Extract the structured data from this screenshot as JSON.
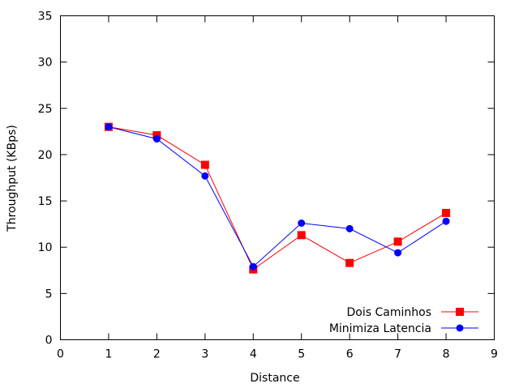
{
  "chart_data": {
    "type": "line",
    "title": "",
    "xlabel": "Distance",
    "ylabel": "Throughput (KBps)",
    "xlim": [
      0,
      9
    ],
    "ylim": [
      0,
      35
    ],
    "x_ticks": [
      "0",
      "1",
      "2",
      "3",
      "4",
      "5",
      "6",
      "7",
      "8",
      "9"
    ],
    "y_ticks": [
      "0",
      "5",
      "10",
      "15",
      "20",
      "25",
      "30",
      "35"
    ],
    "grid": false,
    "legend_position": "bottom-right",
    "x": [
      1,
      2,
      3,
      4,
      5,
      6,
      7,
      8
    ],
    "series": [
      {
        "name": "Dois Caminhos",
        "color": "#ff0000",
        "marker": "square",
        "values": [
          23.0,
          22.1,
          18.9,
          7.6,
          11.3,
          8.3,
          10.6,
          13.7
        ]
      },
      {
        "name": "Minimiza Latencia",
        "color": "#0000ff",
        "marker": "circle",
        "values": [
          23.0,
          21.7,
          17.7,
          7.9,
          12.6,
          12.0,
          9.4,
          12.8
        ]
      }
    ]
  }
}
